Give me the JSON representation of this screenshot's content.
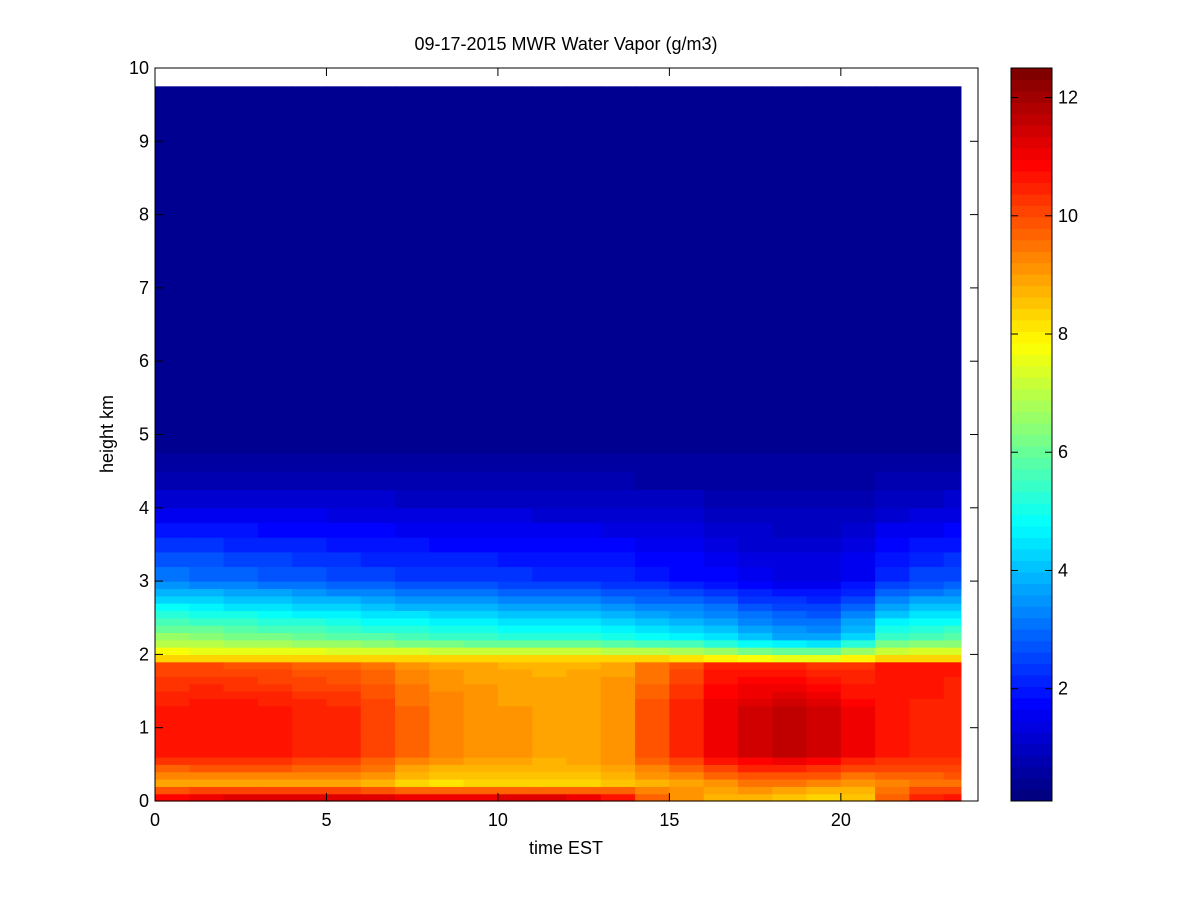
{
  "chart_data": {
    "type": "heatmap",
    "title": "09-17-2015 MWR Water Vapor (g/m3)",
    "xlabel": "time EST",
    "ylabel": "height km",
    "xlim": [
      0,
      24
    ],
    "ylim": [
      0,
      10
    ],
    "x_ticks": [
      0,
      5,
      10,
      15,
      20
    ],
    "y_ticks": [
      0,
      1,
      2,
      3,
      4,
      5,
      6,
      7,
      8,
      9,
      10
    ],
    "colorbar": {
      "colormap": "jet",
      "range": [
        0.1,
        12.5
      ],
      "ticks": [
        2,
        4,
        6,
        8,
        10,
        12
      ],
      "levels": 64
    },
    "x": [
      0,
      1,
      2,
      3,
      4,
      5,
      6,
      7,
      8,
      9,
      10,
      11,
      12,
      13,
      14,
      15,
      16,
      17,
      18,
      19,
      20,
      21,
      22,
      23,
      23.5
    ],
    "heights": [
      0,
      0.1,
      0.2,
      0.3,
      0.4,
      0.5,
      0.6,
      0.7,
      0.8,
      0.9,
      1.0,
      1.1,
      1.2,
      1.3,
      1.4,
      1.5,
      1.6,
      1.7,
      1.8,
      1.9,
      2.0,
      2.1,
      2.2,
      2.3,
      2.4,
      2.5,
      2.6,
      2.7,
      2.8,
      2.9,
      3.0,
      3.2,
      3.4,
      3.6,
      3.8,
      4.0,
      4.25,
      4.5,
      4.75,
      5.0,
      5.5,
      6.0,
      7.0,
      8.0,
      9.0,
      9.75
    ],
    "time_profiles": {
      "time": [
        0,
        2,
        4,
        6,
        8,
        10,
        12,
        13.5,
        15,
        16.5,
        18,
        19,
        20.4,
        20.6,
        22,
        23.5
      ],
      "surface": [
        11.3,
        11.8,
        11.9,
        11.9,
        11.7,
        11.9,
        11.9,
        11.1,
        9.4,
        8.7,
        8.4,
        8.1,
        8.1,
        8.6,
        10.5,
        11.0
      ],
      "low_band": [
        8.8,
        8.9,
        9.0,
        8.8,
        8.2,
        8.3,
        8.3,
        8.6,
        8.9,
        9.2,
        9.5,
        9.4,
        9.0,
        9.2,
        9.5,
        9.6
      ],
      "mid_layer": [
        10.6,
        10.8,
        10.6,
        10.4,
        9.4,
        9.1,
        8.9,
        9.2,
        10.2,
        11.1,
        11.5,
        11.6,
        11.2,
        10.8,
        10.6,
        10.4
      ],
      "top_layer": [
        9.9,
        9.9,
        9.7,
        9.5,
        9.0,
        8.8,
        8.7,
        8.9,
        9.6,
        10.4,
        10.5,
        10.3,
        9.9,
        10.4,
        10.8,
        10.6
      ],
      "layer_top_km": [
        1.95,
        1.95,
        1.95,
        1.95,
        1.95,
        1.95,
        1.95,
        1.95,
        1.95,
        1.92,
        1.9,
        1.9,
        1.9,
        1.95,
        1.95,
        1.95
      ],
      "value_at_2_2km": [
        6.8,
        6.5,
        6.3,
        6.0,
        5.7,
        5.5,
        5.4,
        5.2,
        5.0,
        4.6,
        3.9,
        3.8,
        3.7,
        5.2,
        5.8,
        6.0
      ],
      "value_at_3km": [
        3.3,
        3.1,
        2.9,
        2.7,
        2.5,
        2.4,
        2.3,
        2.2,
        2.0,
        1.8,
        1.5,
        1.5,
        1.4,
        2.0,
        2.5,
        2.7
      ]
    }
  }
}
